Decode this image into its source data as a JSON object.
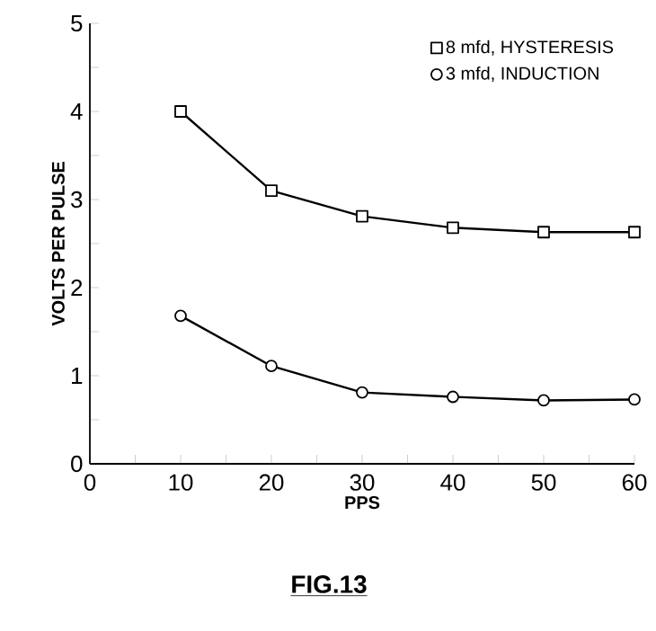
{
  "chart_data": {
    "type": "line",
    "xlabel": "PPS",
    "ylabel": "VOLTS PER PULSE",
    "x": [
      10,
      20,
      30,
      40,
      50,
      60
    ],
    "series": [
      {
        "name": "8 mfd, HYSTERESIS",
        "color": "#000000",
        "marker": "square",
        "values": [
          4.0,
          3.1,
          2.81,
          2.68,
          2.63,
          2.63
        ]
      },
      {
        "name": "3 mfd, INDUCTION",
        "color": "#000000",
        "marker": "circle",
        "values": [
          1.68,
          1.11,
          0.81,
          0.76,
          0.72,
          0.73
        ]
      }
    ],
    "xlim": [
      0,
      60
    ],
    "ylim": [
      0,
      5
    ],
    "xticks": [
      0,
      {
        "value": 5,
        "label": null
      },
      10,
      {
        "value": 15,
        "label": null
      },
      20,
      {
        "value": 25,
        "label": null
      },
      30,
      {
        "value": 35,
        "label": null
      },
      40,
      {
        "value": 45,
        "label": null
      },
      50,
      {
        "value": 55,
        "label": null
      },
      60
    ],
    "yticks": [
      0,
      {
        "value": 0.5,
        "label": null
      },
      1,
      {
        "value": 1.5,
        "label": null
      },
      2,
      {
        "value": 2.5,
        "label": null
      },
      3,
      {
        "value": 3.5,
        "label": null
      },
      4,
      {
        "value": 4.5,
        "label": null
      },
      5
    ],
    "legend": "top right",
    "grid": false,
    "line_style": "solid",
    "annotations": [
      "FIG.13"
    ]
  }
}
